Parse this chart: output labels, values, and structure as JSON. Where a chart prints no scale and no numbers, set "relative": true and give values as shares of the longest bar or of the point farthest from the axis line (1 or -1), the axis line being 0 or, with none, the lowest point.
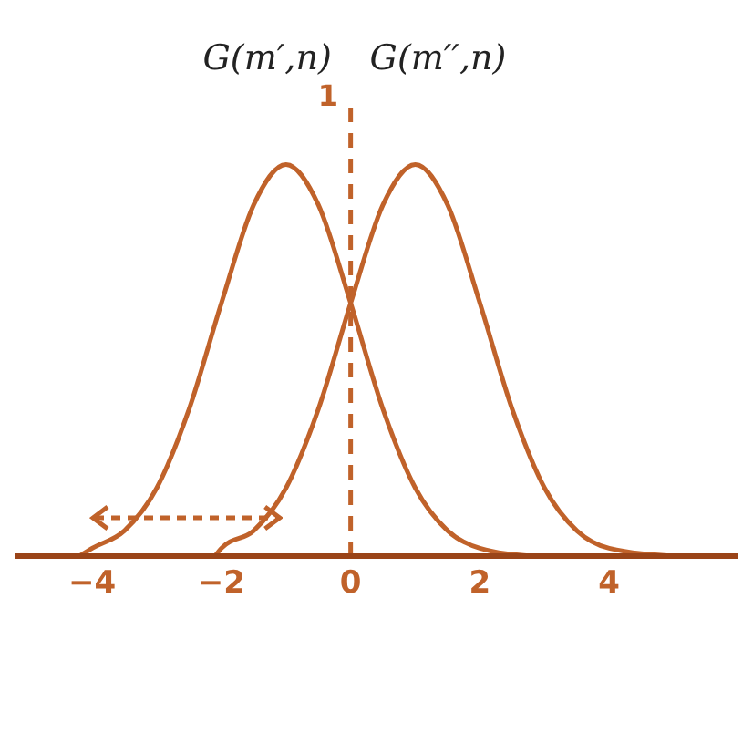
{
  "chart_data": {
    "type": "line",
    "relative": true,
    "series": [
      {
        "name": "G(m′,n)",
        "color": "#c0622a",
        "x": [
          -4.2,
          -4,
          -3.5,
          -3,
          -2.5,
          -2,
          -1.5,
          -1,
          -0.5,
          0,
          0.5,
          1,
          1.5,
          2,
          2.8
        ],
        "values": [
          0,
          0.02,
          0.065,
          0.174,
          0.375,
          0.646,
          0.897,
          1,
          0.897,
          0.646,
          0.375,
          0.174,
          0.065,
          0.02,
          0
        ]
      },
      {
        "name": "G(m′′,n)",
        "color": "#c0622a",
        "x": [
          -2.1,
          -2,
          -1.5,
          -1,
          -0.5,
          0,
          0.5,
          1,
          1.5,
          2,
          2.5,
          3,
          3.5,
          4,
          5
        ],
        "values": [
          0,
          0.02,
          0.065,
          0.174,
          0.375,
          0.646,
          0.897,
          1,
          0.897,
          0.646,
          0.375,
          0.174,
          0.065,
          0.02,
          0
        ]
      }
    ],
    "xlim": [
      -5.2,
      6
    ],
    "xticks": [
      {
        "value": -4,
        "label": "−4"
      },
      {
        "value": -2,
        "label": "−2"
      },
      0,
      2,
      4
    ],
    "ref_lines": [
      {
        "axis": "x",
        "value": 0,
        "line_style": "dashed",
        "color": "#c0622a"
      }
    ],
    "annotations": [
      "1"
    ],
    "grid": false,
    "legend": false,
    "marker": "none",
    "line_style": "solid"
  }
}
